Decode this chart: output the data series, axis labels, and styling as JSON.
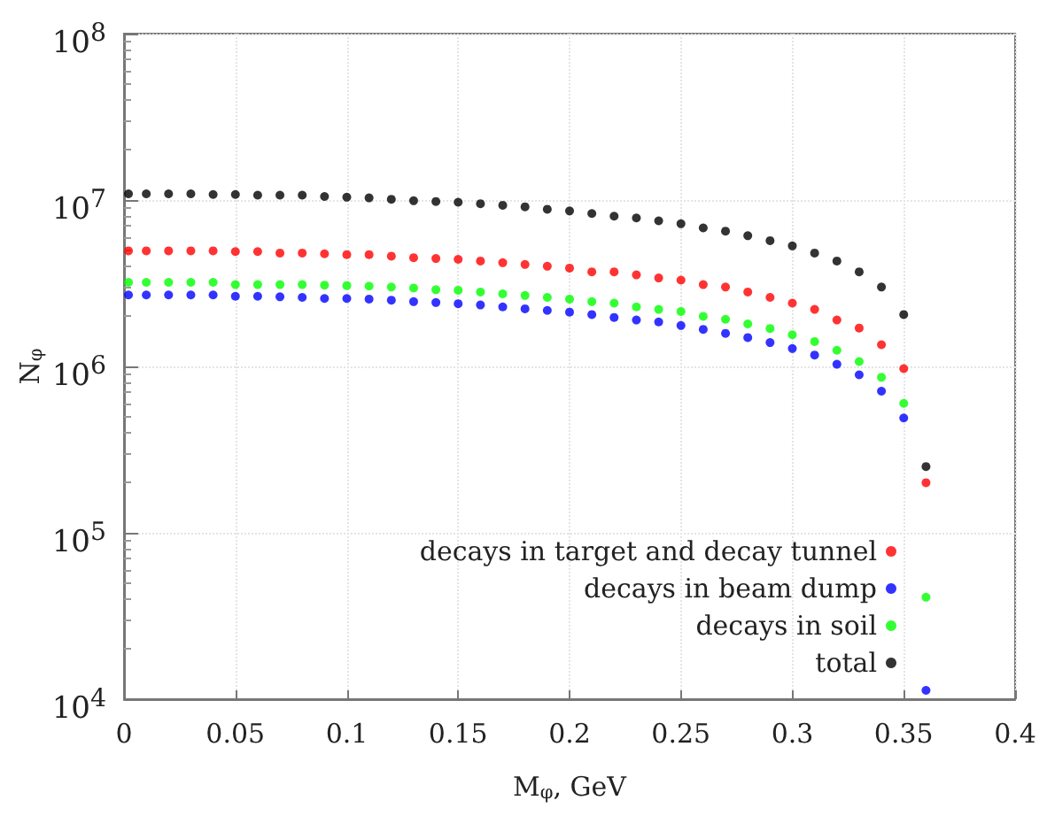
{
  "chart_data": {
    "type": "scatter",
    "xlabel": "M$_{φ}$, GeV",
    "ylabel": "N$_{φ}$",
    "x": [
      0.002,
      0.01,
      0.02,
      0.03,
      0.04,
      0.05,
      0.06,
      0.07,
      0.08,
      0.09,
      0.1,
      0.11,
      0.12,
      0.13,
      0.14,
      0.15,
      0.16,
      0.17,
      0.18,
      0.19,
      0.2,
      0.21,
      0.22,
      0.23,
      0.24,
      0.25,
      0.26,
      0.27,
      0.28,
      0.29,
      0.3,
      0.31,
      0.32,
      0.33,
      0.34,
      0.35,
      0.36
    ],
    "series": [
      {
        "name": "decays in target and decay tunnel",
        "color": "#ff0000",
        "values": [
          4950000,
          4950000,
          4950000,
          4950000,
          4950000,
          4900000,
          4900000,
          4800000,
          4800000,
          4750000,
          4700000,
          4700000,
          4600000,
          4500000,
          4450000,
          4400000,
          4300000,
          4200000,
          4100000,
          4000000,
          3900000,
          3700000,
          3700000,
          3550000,
          3400000,
          3300000,
          3100000,
          3000000,
          2800000,
          2600000,
          2400000,
          2200000,
          1900000,
          1700000,
          1350000,
          970000,
          200000
        ]
      },
      {
        "name": "decays in beam dump",
        "color": "#0000ff",
        "values": [
          2690000,
          2690000,
          2690000,
          2690000,
          2690000,
          2640000,
          2640000,
          2620000,
          2600000,
          2560000,
          2560000,
          2540000,
          2500000,
          2450000,
          2420000,
          2380000,
          2340000,
          2280000,
          2220000,
          2170000,
          2120000,
          2050000,
          1970000,
          1900000,
          1850000,
          1760000,
          1670000,
          1580000,
          1490000,
          1390000,
          1280000,
          1170000,
          1030000,
          890000,
          710000,
          490000,
          11300
        ]
      },
      {
        "name": "decays in soil",
        "color": "#00ff00",
        "values": [
          3200000,
          3200000,
          3200000,
          3200000,
          3200000,
          3100000,
          3100000,
          3100000,
          3100000,
          3080000,
          3060000,
          3040000,
          3000000,
          2960000,
          2890000,
          2870000,
          2800000,
          2730000,
          2670000,
          2600000,
          2540000,
          2450000,
          2400000,
          2280000,
          2200000,
          2140000,
          2000000,
          1920000,
          1800000,
          1690000,
          1550000,
          1410000,
          1250000,
          1070000,
          860000,
          600000,
          41000
        ]
      },
      {
        "name": "total",
        "color": "#000000",
        "values": [
          10900000,
          10900000,
          10900000,
          10900000,
          10800000,
          10800000,
          10700000,
          10700000,
          10700000,
          10500000,
          10400000,
          10300000,
          10100000,
          9900000,
          9800000,
          9700000,
          9500000,
          9300000,
          9100000,
          8800000,
          8600000,
          8300000,
          8000000,
          7800000,
          7500000,
          7200000,
          6800000,
          6500000,
          6100000,
          5700000,
          5300000,
          4800000,
          4300000,
          3700000,
          3000000,
          2050000,
          250000
        ]
      }
    ],
    "xlim": [
      0,
      0.4
    ],
    "xticks": [
      0,
      0.05,
      0.1,
      0.15,
      0.2,
      0.25,
      0.3,
      0.35,
      0.4
    ],
    "ylim": [
      10000,
      100000000
    ],
    "yticks": [
      {
        "value": 10000,
        "label": "10$^{4}$"
      },
      {
        "value": 100000,
        "label": "10$^{5}$"
      },
      {
        "value": 1000000,
        "label": "10$^{6}$"
      },
      {
        "value": 10000000,
        "label": "10$^{7}$"
      },
      {
        "value": 100000000,
        "label": "10$^{8}$"
      }
    ],
    "log": "y",
    "grid": true,
    "legend": "bottom right",
    "marker": "circle"
  }
}
